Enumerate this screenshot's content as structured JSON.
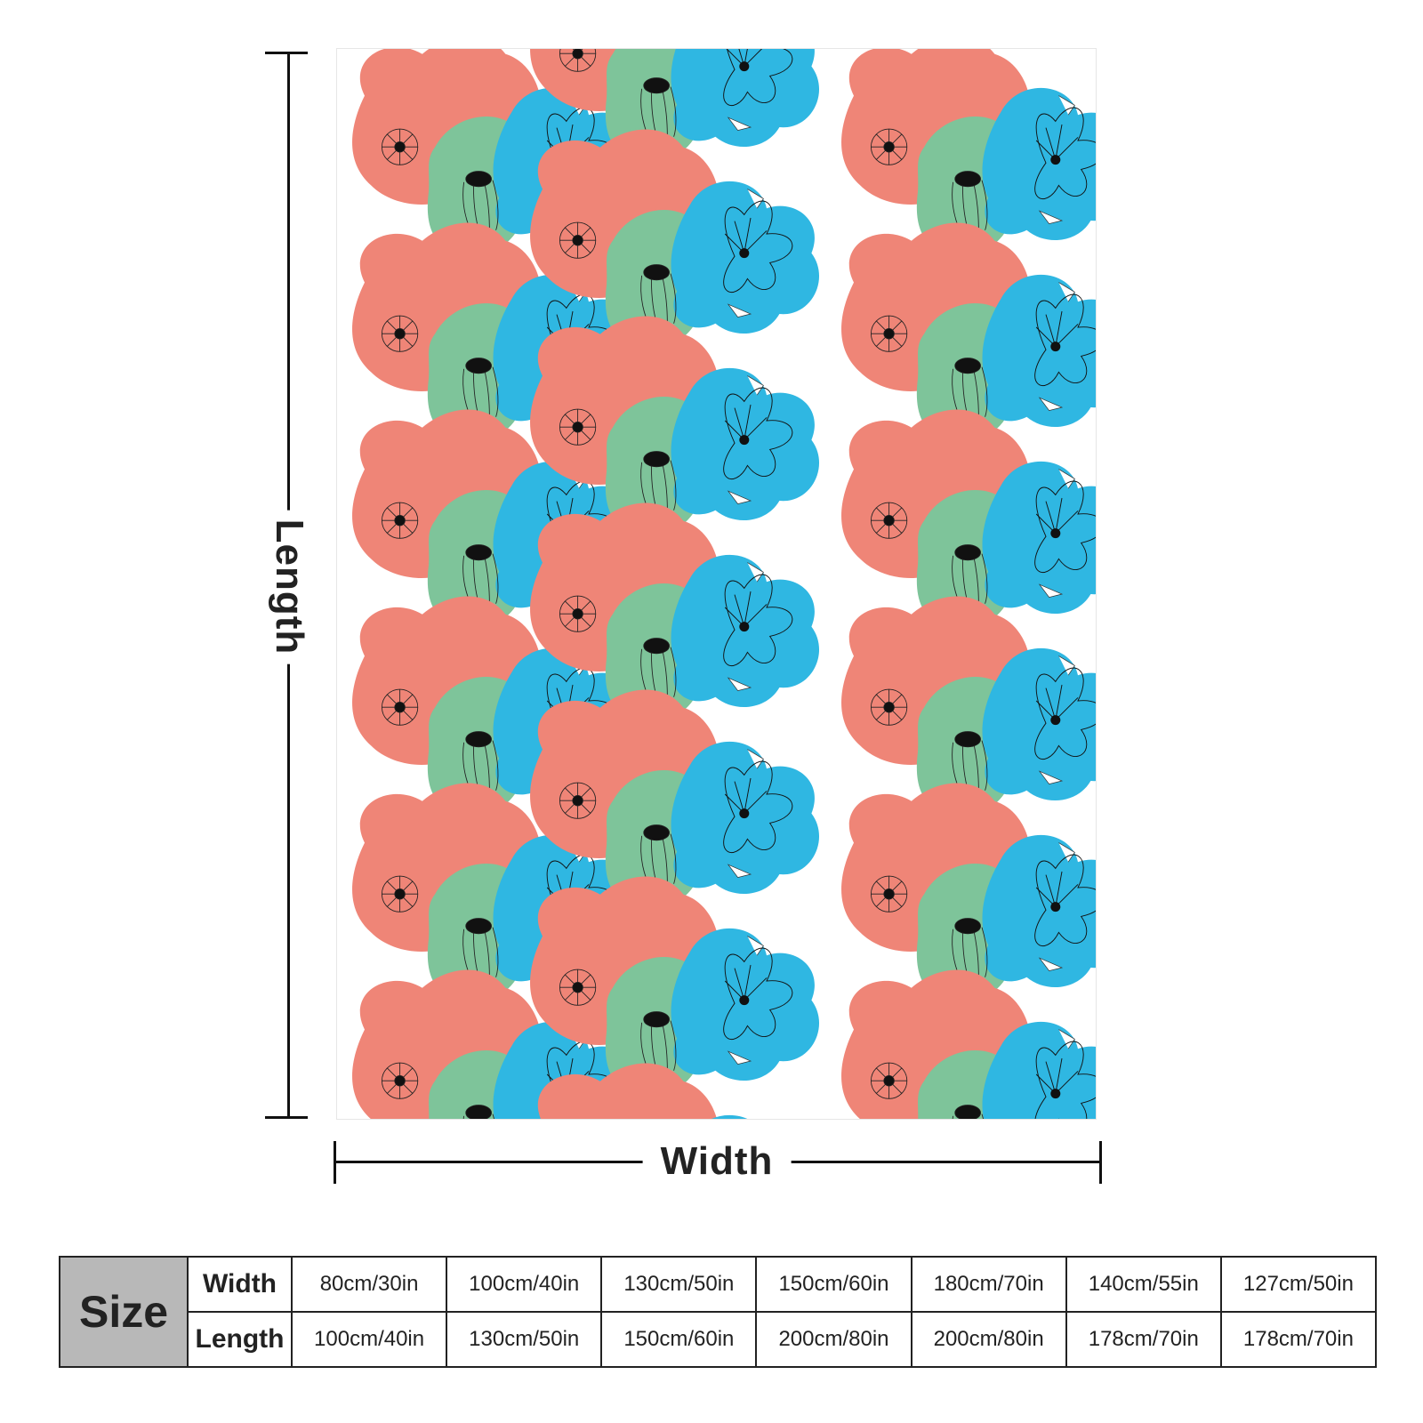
{
  "colors": {
    "salmon": "#ef8577",
    "green": "#7ec49a",
    "blue": "#2fb7e2",
    "background": "#ffffff"
  },
  "dimensions": {
    "length_label": "Length",
    "width_label": "Width"
  },
  "size_table": {
    "header": "Size",
    "rows": [
      {
        "label": "Width",
        "values": [
          "80cm/30in",
          "100cm/40in",
          "130cm/50in",
          "150cm/60in",
          "180cm/70in",
          "140cm/55in",
          "127cm/50in"
        ]
      },
      {
        "label": "Length",
        "values": [
          "100cm/40in",
          "130cm/50in",
          "150cm/60in",
          "200cm/80in",
          "200cm/80in",
          "178cm/70in",
          "178cm/70in"
        ]
      }
    ]
  }
}
